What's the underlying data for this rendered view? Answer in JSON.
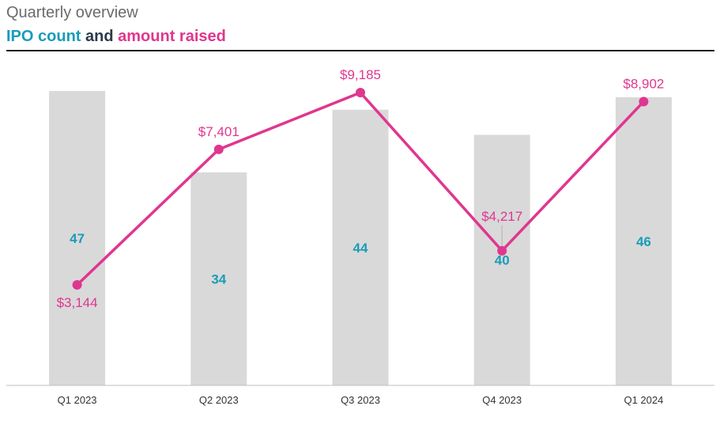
{
  "header": {
    "subtitle": "Quarterly overview",
    "title_part1": "IPO count",
    "title_part2": "and",
    "title_part3": "amount raised"
  },
  "colors": {
    "bar": "#d9d9d9",
    "count_text": "#1a9cb8",
    "line": "#e0368f",
    "axis": "#bfbfbf",
    "title_dark": "#2b3a4a"
  },
  "chart_data": {
    "type": "bar",
    "categories": [
      "Q1 2023",
      "Q2 2023",
      "Q3 2023",
      "Q4 2023",
      "Q1 2024"
    ],
    "series": [
      {
        "name": "IPO count",
        "type": "bar",
        "values": [
          47,
          34,
          44,
          40,
          46
        ],
        "labels": [
          "47",
          "34",
          "44",
          "40",
          "46"
        ],
        "ylim": [
          0,
          48
        ]
      },
      {
        "name": "amount raised",
        "type": "line",
        "values": [
          3144,
          7401,
          9185,
          4217,
          8902
        ],
        "labels": [
          "$3,144",
          "$7,401",
          "$9,185",
          "$4,217",
          "$8,902"
        ],
        "ylim": [
          0,
          10000
        ]
      }
    ],
    "grid": false
  }
}
